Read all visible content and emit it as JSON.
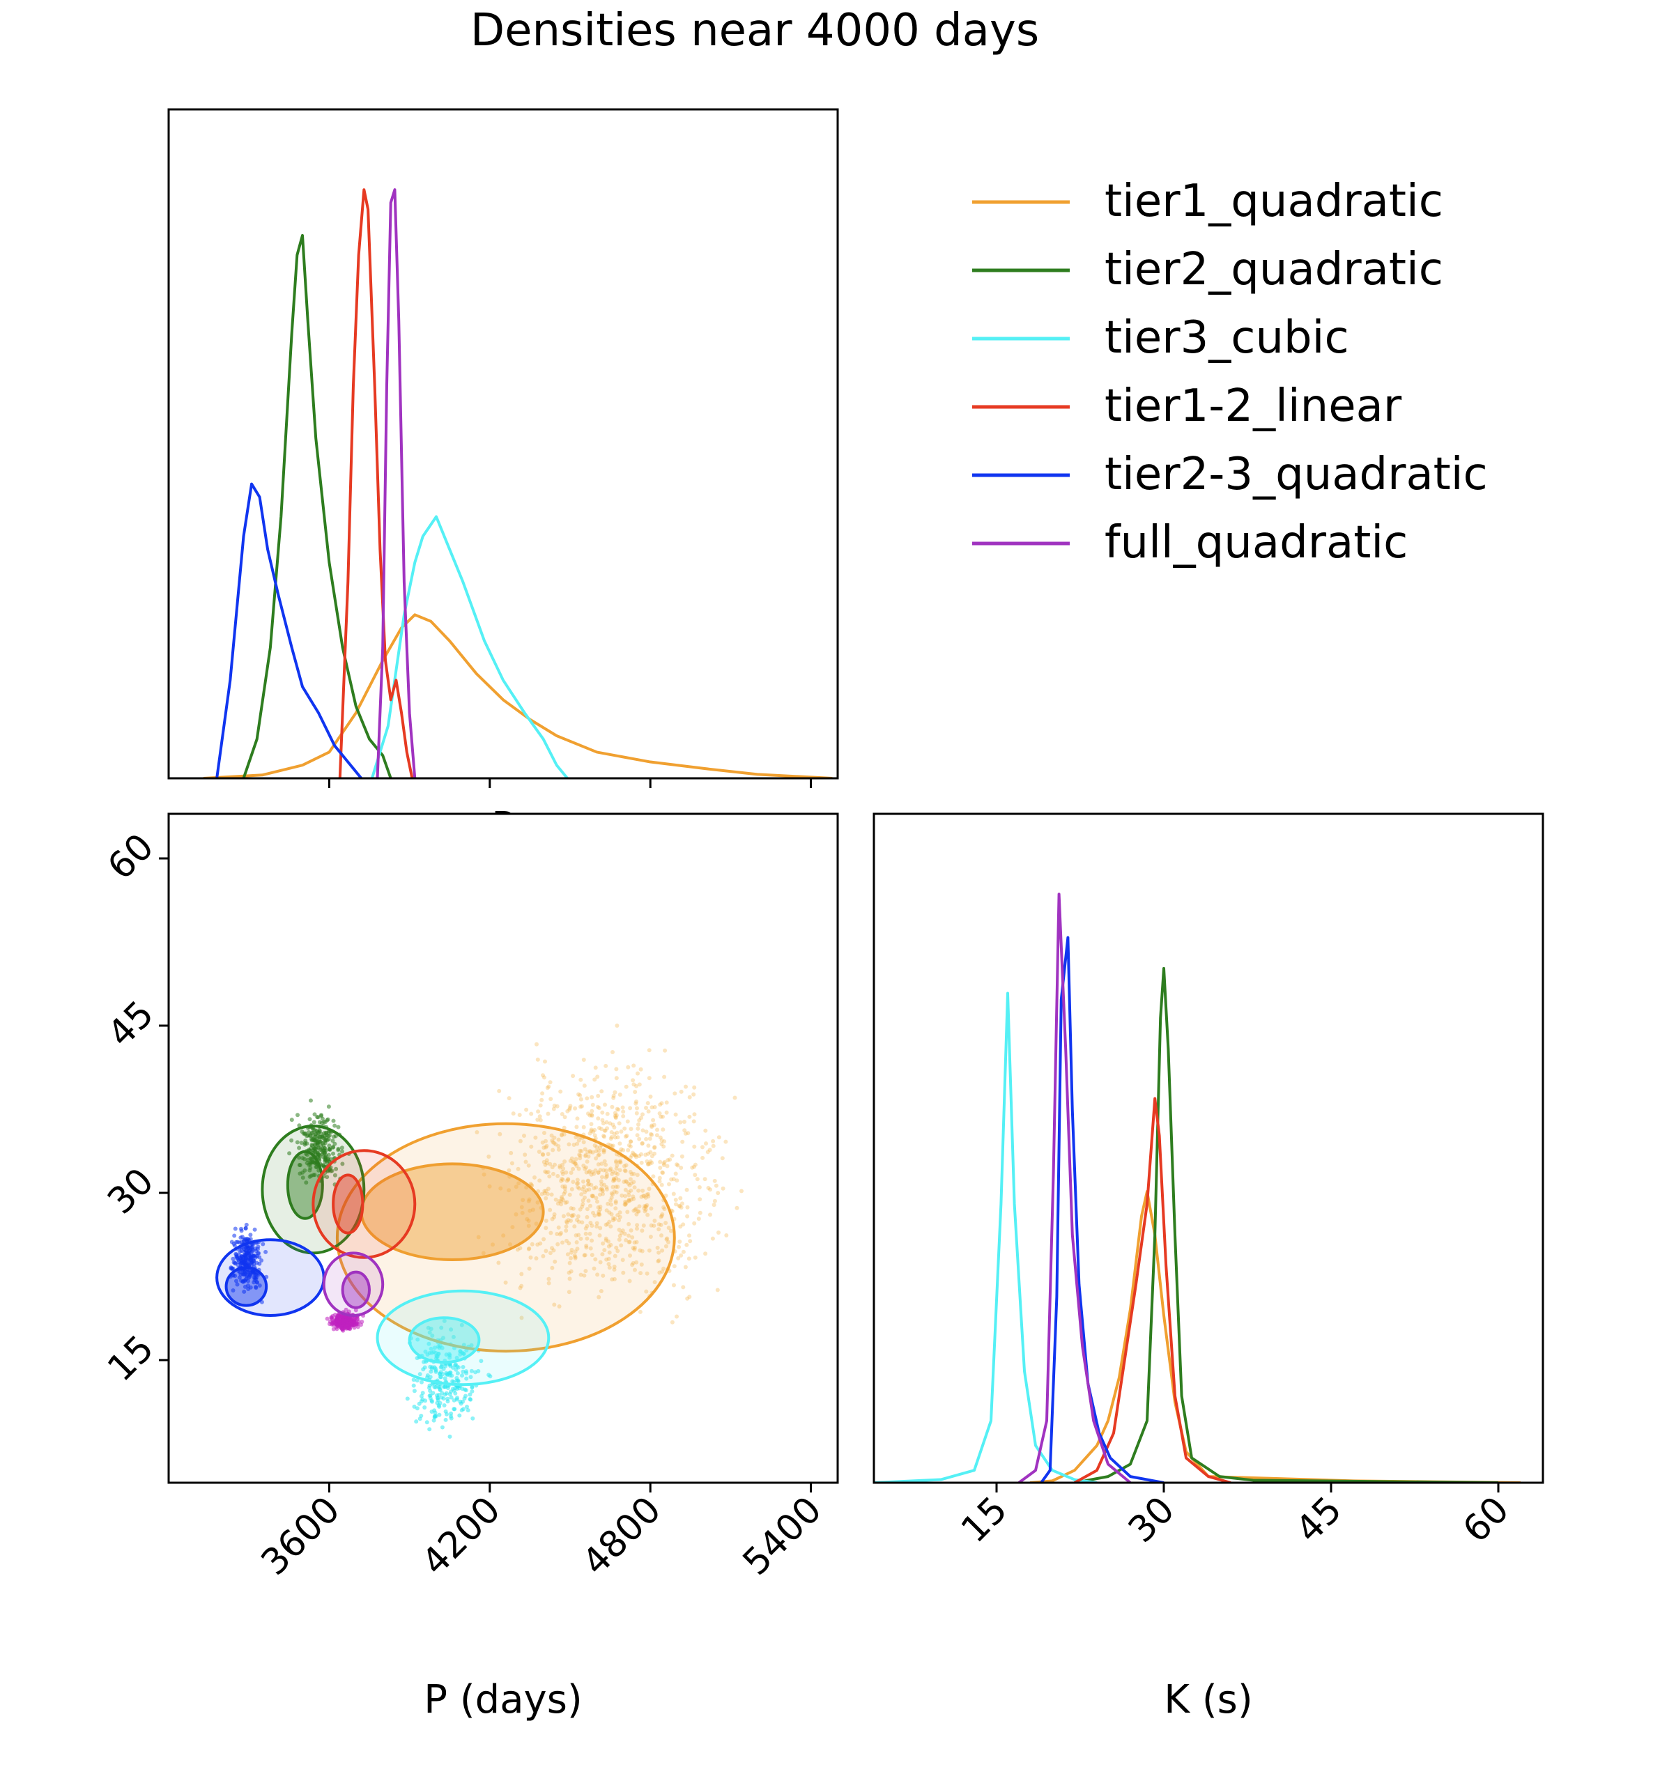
{
  "chart_data": {
    "type": "corner",
    "title": "Densities near 4000 days",
    "xlabel_left": "P (days)",
    "xlabel_right": "K (s)",
    "top_panel_stub_label": "P",
    "p_axis": {
      "ticks": [
        3600,
        4200,
        4800,
        5400
      ],
      "labels": [
        "3600",
        "4200",
        "4800",
        "5400"
      ],
      "range": [
        3000,
        5500
      ]
    },
    "k_axis": {
      "ticks": [
        15,
        30,
        45,
        60
      ],
      "labels": [
        "15",
        "30",
        "45",
        "60"
      ],
      "range": [
        4,
        64
      ]
    },
    "k_density_axis": {
      "ticks": [
        15,
        30,
        45,
        60
      ],
      "labels": [
        "15",
        "30",
        "45",
        "60"
      ],
      "range": [
        4,
        64
      ]
    },
    "series": [
      {
        "name": "tier1_quadratic",
        "color": "#f0a030",
        "p_density": [
          [
            3130,
            0
          ],
          [
            3350,
            0.005
          ],
          [
            3500,
            0.02
          ],
          [
            3600,
            0.04
          ],
          [
            3700,
            0.1
          ],
          [
            3800,
            0.18
          ],
          [
            3870,
            0.23
          ],
          [
            3920,
            0.25
          ],
          [
            3980,
            0.24
          ],
          [
            4050,
            0.21
          ],
          [
            4150,
            0.16
          ],
          [
            4250,
            0.12
          ],
          [
            4350,
            0.09
          ],
          [
            4450,
            0.065
          ],
          [
            4600,
            0.04
          ],
          [
            4800,
            0.025
          ],
          [
            5000,
            0.015
          ],
          [
            5200,
            0.006
          ],
          [
            5480,
            0
          ]
        ],
        "k_density": [
          [
            18,
            0
          ],
          [
            20,
            0.003
          ],
          [
            22,
            0.02
          ],
          [
            24,
            0.06
          ],
          [
            25,
            0.1
          ],
          [
            26,
            0.17
          ],
          [
            27,
            0.28
          ],
          [
            28,
            0.43
          ],
          [
            28.5,
            0.47
          ],
          [
            29.2,
            0.4
          ],
          [
            30,
            0.27
          ],
          [
            31,
            0.13
          ],
          [
            32,
            0.05
          ],
          [
            34,
            0.01
          ],
          [
            47,
            0.003
          ],
          [
            62,
            0
          ]
        ],
        "contours": [
          {
            "cx": 4060,
            "cy": 28.3,
            "rx": 340,
            "ry": 4.3
          },
          {
            "cx": 4260,
            "cy": 26,
            "rx": 630,
            "ry": 10.2
          }
        ]
      },
      {
        "name": "tier2_quadratic",
        "color": "#2e7d1f",
        "p_density": [
          [
            3280,
            0
          ],
          [
            3330,
            0.06
          ],
          [
            3380,
            0.2
          ],
          [
            3420,
            0.4
          ],
          [
            3460,
            0.68
          ],
          [
            3480,
            0.8
          ],
          [
            3500,
            0.83
          ],
          [
            3520,
            0.7
          ],
          [
            3550,
            0.52
          ],
          [
            3600,
            0.33
          ],
          [
            3650,
            0.2
          ],
          [
            3700,
            0.11
          ],
          [
            3750,
            0.06
          ],
          [
            3800,
            0.035
          ],
          [
            3830,
            0
          ]
        ],
        "k_density": [
          [
            22,
            0
          ],
          [
            25,
            0.01
          ],
          [
            27,
            0.03
          ],
          [
            28.5,
            0.1
          ],
          [
            29.2,
            0.4
          ],
          [
            29.7,
            0.75
          ],
          [
            30,
            0.83
          ],
          [
            30.4,
            0.7
          ],
          [
            31,
            0.4
          ],
          [
            31.6,
            0.14
          ],
          [
            32.5,
            0.04
          ],
          [
            35,
            0.01
          ],
          [
            38,
            0.004
          ],
          [
            60,
            0
          ]
        ],
        "contours": [
          {
            "cx": 3510,
            "cy": 30.7,
            "rx": 65,
            "ry": 3.0
          },
          {
            "cx": 3540,
            "cy": 30.3,
            "rx": 190,
            "ry": 5.7
          }
        ]
      },
      {
        "name": "tier3_cubic",
        "color": "#55f0f5",
        "p_density": [
          [
            3760,
            0
          ],
          [
            3820,
            0.08
          ],
          [
            3880,
            0.25
          ],
          [
            3920,
            0.33
          ],
          [
            3950,
            0.37
          ],
          [
            4000,
            0.4
          ],
          [
            4040,
            0.36
          ],
          [
            4100,
            0.3
          ],
          [
            4180,
            0.21
          ],
          [
            4250,
            0.15
          ],
          [
            4330,
            0.1
          ],
          [
            4400,
            0.06
          ],
          [
            4450,
            0.02
          ],
          [
            4490,
            0
          ]
        ],
        "k_density": [
          [
            4,
            0
          ],
          [
            10,
            0.005
          ],
          [
            13,
            0.02
          ],
          [
            14.5,
            0.1
          ],
          [
            15.4,
            0.45
          ],
          [
            16,
            0.79
          ],
          [
            16.6,
            0.45
          ],
          [
            17.5,
            0.18
          ],
          [
            18.5,
            0.06
          ],
          [
            20,
            0.02
          ],
          [
            22,
            0.005
          ],
          [
            24,
            0
          ]
        ],
        "contours": [
          {
            "cx": 4030,
            "cy": 16.8,
            "rx": 130,
            "ry": 2.0
          },
          {
            "cx": 4100,
            "cy": 17.0,
            "rx": 320,
            "ry": 4.2
          }
        ]
      },
      {
        "name": "tier1-2_linear",
        "color": "#e63a22",
        "p_density": [
          [
            3640,
            0
          ],
          [
            3670,
            0.3
          ],
          [
            3690,
            0.6
          ],
          [
            3710,
            0.8
          ],
          [
            3730,
            0.9
          ],
          [
            3745,
            0.87
          ],
          [
            3770,
            0.6
          ],
          [
            3790,
            0.35
          ],
          [
            3810,
            0.18
          ],
          [
            3830,
            0.12
          ],
          [
            3850,
            0.15
          ],
          [
            3870,
            0.1
          ],
          [
            3890,
            0.04
          ],
          [
            3910,
            0
          ]
        ],
        "k_density": [
          [
            22,
            0
          ],
          [
            24,
            0.02
          ],
          [
            25.5,
            0.08
          ],
          [
            26.5,
            0.2
          ],
          [
            27.5,
            0.32
          ],
          [
            28.5,
            0.45
          ],
          [
            29.2,
            0.62
          ],
          [
            29.6,
            0.56
          ],
          [
            30.2,
            0.35
          ],
          [
            31,
            0.14
          ],
          [
            32,
            0.04
          ],
          [
            34,
            0.01
          ],
          [
            36,
            0
          ]
        ],
        "contours": [
          {
            "cx": 3670,
            "cy": 29.0,
            "rx": 55,
            "ry": 2.6
          },
          {
            "cx": 3730,
            "cy": 29.0,
            "rx": 190,
            "ry": 4.8
          }
        ]
      },
      {
        "name": "tier2-3_quadratic",
        "color": "#1035f0",
        "p_density": [
          [
            3180,
            0
          ],
          [
            3230,
            0.15
          ],
          [
            3280,
            0.37
          ],
          [
            3310,
            0.45
          ],
          [
            3340,
            0.43
          ],
          [
            3370,
            0.35
          ],
          [
            3410,
            0.28
          ],
          [
            3460,
            0.2
          ],
          [
            3500,
            0.14
          ],
          [
            3560,
            0.1
          ],
          [
            3620,
            0.05
          ],
          [
            3680,
            0.02
          ],
          [
            3720,
            0
          ]
        ],
        "k_density": [
          [
            19,
            0
          ],
          [
            19.8,
            0.02
          ],
          [
            20.4,
            0.3
          ],
          [
            20.8,
            0.78
          ],
          [
            21.4,
            0.88
          ],
          [
            21.8,
            0.6
          ],
          [
            22.4,
            0.32
          ],
          [
            23.2,
            0.16
          ],
          [
            24.2,
            0.08
          ],
          [
            25.2,
            0.04
          ],
          [
            27,
            0.01
          ],
          [
            30,
            0
          ]
        ],
        "contours": [
          {
            "cx": 3290,
            "cy": 21.6,
            "rx": 75,
            "ry": 1.7
          },
          {
            "cx": 3380,
            "cy": 22.4,
            "rx": 200,
            "ry": 3.4
          }
        ]
      },
      {
        "name": "full_quadratic",
        "color": "#a033c0",
        "p_density": [
          [
            3780,
            0
          ],
          [
            3800,
            0.2
          ],
          [
            3815,
            0.6
          ],
          [
            3830,
            0.88
          ],
          [
            3845,
            0.9
          ],
          [
            3860,
            0.7
          ],
          [
            3880,
            0.3
          ],
          [
            3900,
            0.1
          ],
          [
            3920,
            0
          ]
        ],
        "k_density": [
          [
            17,
            0
          ],
          [
            18.5,
            0.02
          ],
          [
            19.5,
            0.1
          ],
          [
            20.1,
            0.5
          ],
          [
            20.6,
            0.95
          ],
          [
            21.2,
            0.7
          ],
          [
            21.8,
            0.4
          ],
          [
            22.7,
            0.22
          ],
          [
            23.7,
            0.1
          ],
          [
            25,
            0.03
          ],
          [
            27,
            0
          ]
        ],
        "contours": [
          {
            "cx": 3700,
            "cy": 21.3,
            "rx": 50,
            "ry": 1.6
          },
          {
            "cx": 3690,
            "cy": 21.8,
            "rx": 110,
            "ry": 2.8
          }
        ]
      }
    ],
    "scatter_clouds": [
      {
        "series": "tier1_quadratic",
        "color": "#f4b44a",
        "p_range": [
          3900,
          5400
        ],
        "k_range": [
          12,
          50
        ]
      },
      {
        "series": "tier2_quadratic",
        "color": "#2e7d1f",
        "p_range": [
          3400,
          3720
        ],
        "k_range": [
          28,
          40
        ]
      },
      {
        "series": "tier3_cubic",
        "color": "#2ee8f0",
        "p_range": [
          3780,
          4280
        ],
        "k_range": [
          5,
          22
        ]
      },
      {
        "series": "tier2-3_quadratic",
        "color": "#1035f0",
        "p_range": [
          3190,
          3390
        ],
        "k_range": [
          19,
          29
        ]
      },
      {
        "series": "full_quadratic",
        "color": "#c020c0",
        "p_range": [
          3560,
          3760
        ],
        "k_range": [
          17,
          20
        ]
      }
    ]
  },
  "legend": {
    "items": [
      {
        "label": "tier1_quadratic",
        "color": "#f0a030"
      },
      {
        "label": "tier2_quadratic",
        "color": "#2e7d1f"
      },
      {
        "label": "tier3_cubic",
        "color": "#55f0f5"
      },
      {
        "label": "tier1-2_linear",
        "color": "#e63a22"
      },
      {
        "label": "tier2-3_quadratic",
        "color": "#1035f0"
      },
      {
        "label": "full_quadratic",
        "color": "#a033c0"
      }
    ]
  }
}
